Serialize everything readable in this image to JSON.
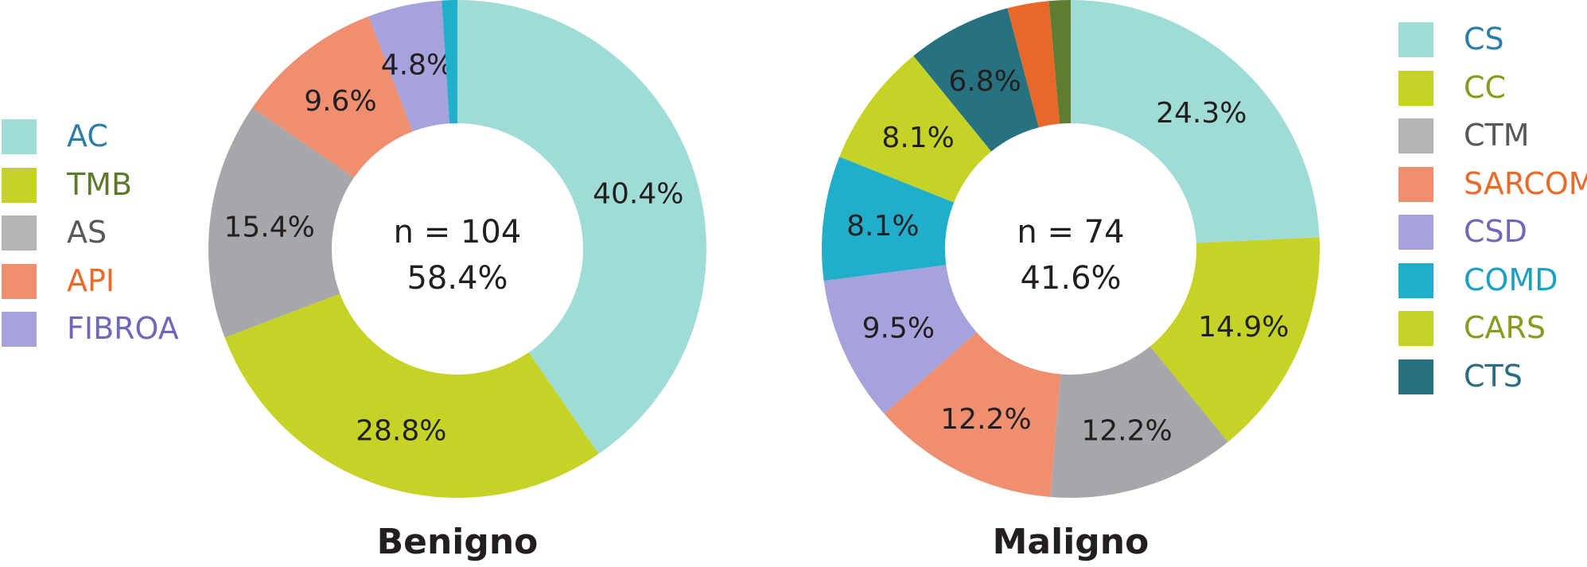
{
  "charts": [
    {
      "title": "Benigno",
      "center_line1": "n = 104",
      "center_line2": "58.4%"
    },
    {
      "title": "Maligno",
      "center_line1": "n = 74",
      "center_line2": "41.6%"
    }
  ],
  "chart_data": [
    {
      "type": "pie",
      "title": "Benigno",
      "n": 104,
      "share_of_total_percent": 58.4,
      "slices": [
        {
          "name": "AC",
          "value": 40.4,
          "label": "40.4%",
          "color": "#a0dcd6"
        },
        {
          "name": "TMB",
          "value": 28.8,
          "label": "28.8%",
          "color": "#c5d226"
        },
        {
          "name": "AS",
          "value": 15.4,
          "label": "15.4%",
          "color": "#a7a6aa"
        },
        {
          "name": "API",
          "value": 9.6,
          "label": "9.6%",
          "color": "#f08e70"
        },
        {
          "name": "FIBROA",
          "value": 4.8,
          "label": "4.8%",
          "color": "#a6a2dc"
        },
        {
          "name": "",
          "value": 1.0,
          "label": "",
          "color": "#21aecb"
        }
      ],
      "legend": [
        {
          "label": "AC",
          "swatch": "#a0dcd6",
          "text_color": "#2a7ea8"
        },
        {
          "label": "TMB",
          "swatch": "#c5d226",
          "text_color": "#5c7a2a"
        },
        {
          "label": "AS",
          "swatch": "#b4b4b7",
          "text_color": "#58585b"
        },
        {
          "label": "API",
          "swatch": "#f08e70",
          "text_color": "#ea6a2a"
        },
        {
          "label": "FIBROA",
          "swatch": "#a6a2dc",
          "text_color": "#6e68b6"
        }
      ]
    },
    {
      "type": "pie",
      "title": "Maligno",
      "n": 74,
      "share_of_total_percent": 41.6,
      "slices": [
        {
          "name": "CS",
          "value": 24.3,
          "label": "24.3%",
          "color": "#a0dcd6"
        },
        {
          "name": "CC",
          "value": 14.9,
          "label": "14.9%",
          "color": "#c5d226"
        },
        {
          "name": "CTM",
          "value": 12.2,
          "label": "12.2%",
          "color": "#a7a6aa"
        },
        {
          "name": "SARCOMA",
          "value": 12.2,
          "label": "12.2%",
          "color": "#f08e70"
        },
        {
          "name": "CSD",
          "value": 9.5,
          "label": "9.5%",
          "color": "#a6a2dc"
        },
        {
          "name": "COMD",
          "value": 8.1,
          "label": "8.1%",
          "color": "#21aecb"
        },
        {
          "name": "CARS",
          "value": 8.1,
          "label": "8.1%",
          "color": "#c5d226"
        },
        {
          "name": "CTS",
          "value": 6.8,
          "label": "6.8%",
          "color": "#267280"
        },
        {
          "name": "",
          "value": 2.7,
          "label": "",
          "color": "#e8682a"
        },
        {
          "name": "",
          "value": 1.4,
          "label": "",
          "color": "#5e7c32"
        }
      ],
      "legend": [
        {
          "label": "CS",
          "swatch": "#a0dcd6",
          "text_color": "#2a7ea8"
        },
        {
          "label": "CC",
          "swatch": "#c5d226",
          "text_color": "#8a9a1e"
        },
        {
          "label": "CTM",
          "swatch": "#b4b4b7",
          "text_color": "#58585b"
        },
        {
          "label": "SARCOMA",
          "swatch": "#f08e70",
          "text_color": "#ea6a2a"
        },
        {
          "label": "CSD",
          "swatch": "#a6a2dc",
          "text_color": "#6e68b6"
        },
        {
          "label": "COMD",
          "swatch": "#21aecb",
          "text_color": "#1aa0c4"
        },
        {
          "label": "CARS",
          "swatch": "#c5d226",
          "text_color": "#8a9a1e"
        },
        {
          "label": "CTS",
          "swatch": "#267280",
          "text_color": "#2a6c86"
        }
      ]
    }
  ]
}
